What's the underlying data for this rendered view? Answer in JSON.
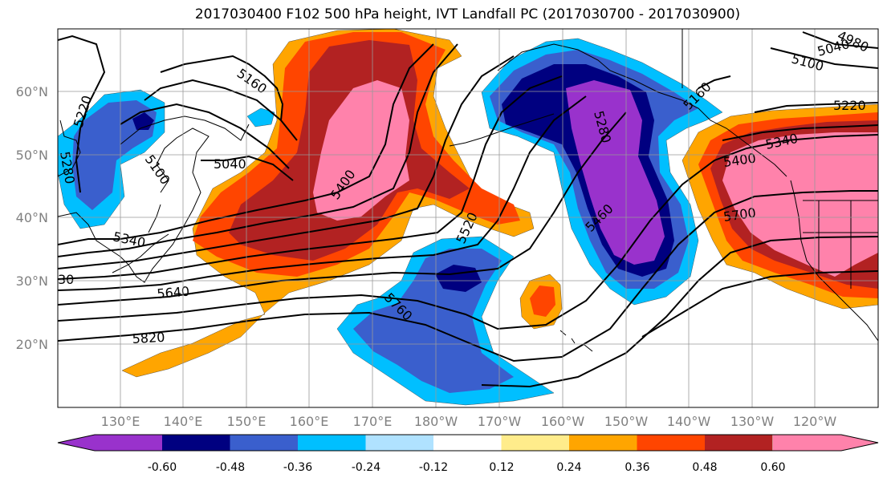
{
  "title": "2017030400 F102 500 hPa height, IVT Landfall PC (2017030700 - 2017030900)",
  "axes": {
    "lon_ticks": [
      "130°E",
      "140°E",
      "150°E",
      "160°E",
      "170°E",
      "180°W",
      "170°W",
      "160°W",
      "150°W",
      "140°W",
      "130°W",
      "120°W"
    ],
    "lat_ticks": [
      "60°N",
      "50°N",
      "40°N",
      "30°N",
      "20°N"
    ]
  },
  "colorbar": {
    "labels": [
      "-0.60",
      "-0.48",
      "-0.36",
      "-0.24",
      "-0.12",
      "0.12",
      "0.24",
      "0.36",
      "0.48",
      "0.60"
    ],
    "colors": [
      "#9932cc",
      "#000080",
      "#3a5fcd",
      "#00bfff",
      "#b0e2ff",
      "#ffffff",
      "#ffec8b",
      "#ffa500",
      "#ff4500",
      "#b22222",
      "#ff82ab"
    ]
  },
  "contour_labels": [
    "5160",
    "5220",
    "5100",
    "5040",
    "5280",
    "5340",
    "5400",
    "5460",
    "5520",
    "5640",
    "5700",
    "5760",
    "5820",
    "5100",
    "5040",
    "4980",
    "5220",
    "5160",
    "5280",
    "5340",
    "5400",
    "30"
  ],
  "colors": {
    "purple": "#9932cc",
    "navy": "#000080",
    "blue": "#3a5fcd",
    "skyblue": "#00bfff",
    "orange": "#ffa500",
    "redorange": "#ff4500",
    "firebrick": "#b22222",
    "pink": "#ff82ab",
    "yellow": "#ffec8b"
  }
}
